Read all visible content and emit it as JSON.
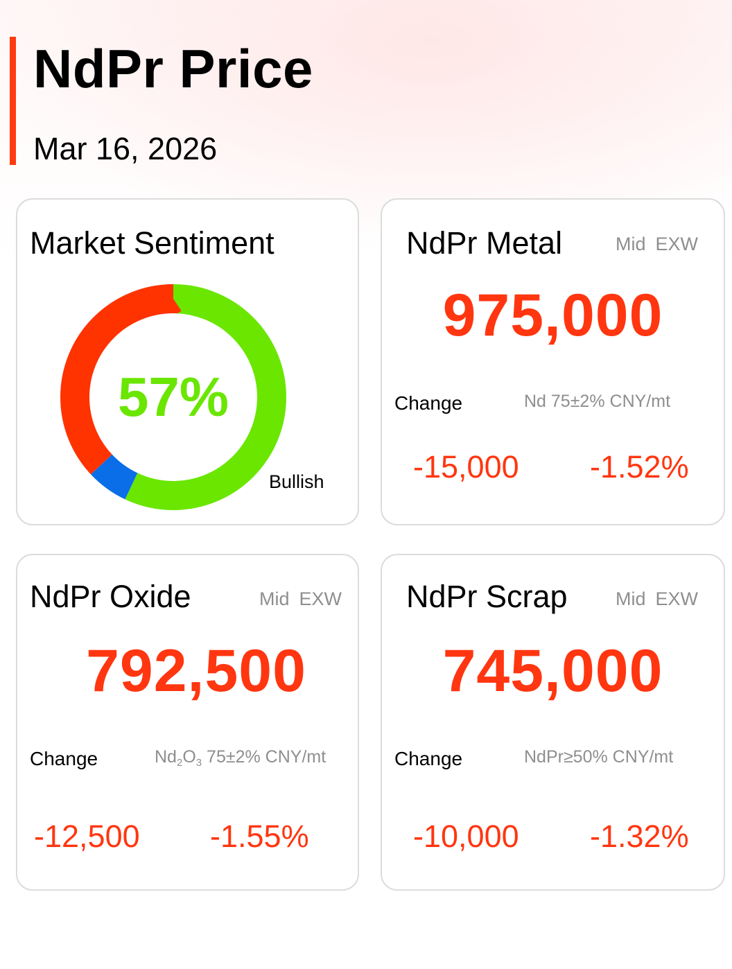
{
  "header": {
    "title": "NdPr Price",
    "date": "Mar 16, 2026"
  },
  "colors": {
    "accent": "#ff3b12",
    "price": "#ff3610",
    "bullish": "#6ae600",
    "bearish": "#ff3300",
    "neutral": "#0a6ee8",
    "muted": "#8e8e8e"
  },
  "sentiment": {
    "title": "Market Sentiment",
    "percent_label": "57%",
    "status_label": "Bullish",
    "bullish_percent": 57,
    "neutral_percent": 6,
    "bearish_percent": 37
  },
  "metal": {
    "title": "NdPr Metal",
    "tag1": "Mid",
    "tag2": "EXW",
    "price": "975,000",
    "change_label": "Change",
    "spec": "Nd 75±2% CNY/mt",
    "change_abs": "-15,000",
    "change_pct": "-1.52%"
  },
  "oxide": {
    "title": "NdPr Oxide",
    "tag1": "Mid",
    "tag2": "EXW",
    "price": "792,500",
    "change_label": "Change",
    "spec_prefix": "Nd",
    "spec_sub1": "2",
    "spec_mid": "O",
    "spec_sub2": "3",
    "spec_suffix": " 75±2% CNY/mt",
    "change_abs": "-12,500",
    "change_pct": "-1.55%"
  },
  "scrap": {
    "title": "NdPr Scrap",
    "tag1": "Mid",
    "tag2": "EXW",
    "price": "745,000",
    "change_label": "Change",
    "spec": "NdPr≥50% CNY/mt",
    "change_abs": "-10,000",
    "change_pct": "-1.32%"
  }
}
